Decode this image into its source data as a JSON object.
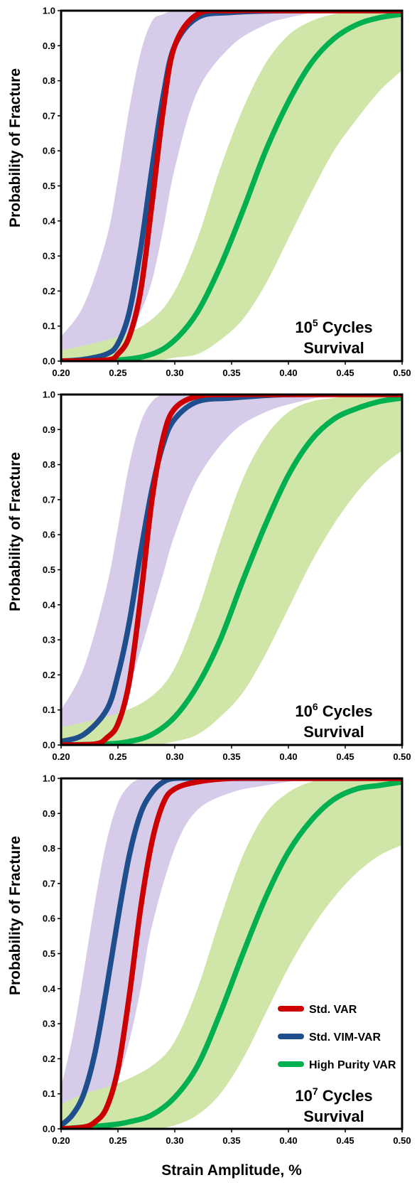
{
  "figure": {
    "ylabel": "Probability of Fracture",
    "xlabel": "Strain Amplitude, %"
  },
  "colors": {
    "std_var": "#cc0000",
    "std_vim_var": "#1f4e8c",
    "high_purity_var": "#00b050",
    "band_purple": "#d6cbe8",
    "band_green": "#d0e5a8"
  },
  "legend": [
    {
      "label": "Std. VAR",
      "color": "#cc0000"
    },
    {
      "label": "Std. VIM-VAR",
      "color": "#1f4e8c"
    },
    {
      "label": "High Purity VAR",
      "color": "#00b050"
    }
  ],
  "chart_data": [
    {
      "type": "line",
      "annotation": {
        "base": "10",
        "exp": "5",
        "line1_rest": " Cycles",
        "line2": "Survival"
      },
      "xlim": [
        0.2,
        0.5
      ],
      "ylim": [
        0.0,
        1.0
      ],
      "xticks": [
        "0.20",
        "0.25",
        "0.30",
        "0.35",
        "0.40",
        "0.45",
        "0.50"
      ],
      "yticks": [
        "0.0",
        "0.1",
        "0.2",
        "0.3",
        "0.4",
        "0.5",
        "0.6",
        "0.7",
        "0.8",
        "0.9",
        "1.0"
      ],
      "series": [
        {
          "name": "Std. VAR",
          "x": [
            0.2,
            0.24,
            0.25,
            0.26,
            0.27,
            0.28,
            0.29,
            0.3,
            0.32,
            0.35,
            0.4,
            0.5
          ],
          "y": [
            0.0,
            0.003,
            0.02,
            0.07,
            0.2,
            0.45,
            0.72,
            0.9,
            0.99,
            1.0,
            1.0,
            1.0
          ]
        },
        {
          "name": "Std. VIM-VAR",
          "x": [
            0.2,
            0.22,
            0.24,
            0.25,
            0.26,
            0.27,
            0.28,
            0.29,
            0.3,
            0.32,
            0.35,
            0.4,
            0.5
          ],
          "y": [
            0.0,
            0.005,
            0.02,
            0.05,
            0.14,
            0.32,
            0.55,
            0.76,
            0.9,
            0.98,
            0.995,
            1.0,
            1.0
          ]
        },
        {
          "name": "High Purity VAR",
          "x": [
            0.2,
            0.25,
            0.28,
            0.3,
            0.32,
            0.34,
            0.36,
            0.38,
            0.4,
            0.42,
            0.44,
            0.46,
            0.48,
            0.5
          ],
          "y": [
            0.0,
            0.003,
            0.02,
            0.06,
            0.14,
            0.27,
            0.43,
            0.6,
            0.74,
            0.85,
            0.92,
            0.96,
            0.98,
            0.99
          ]
        }
      ],
      "bands": [
        {
          "color": "band_purple",
          "x": [
            0.2,
            0.22,
            0.24,
            0.25,
            0.26,
            0.27,
            0.28,
            0.29,
            0.3,
            0.32,
            0.35,
            0.38,
            0.4,
            0.43
          ],
          "upper": [
            0.07,
            0.16,
            0.35,
            0.52,
            0.72,
            0.88,
            0.97,
            0.99,
            1.0,
            1.0,
            1.0,
            1.0,
            1.0,
            1.0
          ],
          "lower": [
            0.0,
            0.0,
            0.02,
            0.04,
            0.08,
            0.14,
            0.23,
            0.38,
            0.55,
            0.77,
            0.9,
            0.96,
            0.98,
            1.0
          ]
        },
        {
          "color": "band_green",
          "x": [
            0.2,
            0.25,
            0.28,
            0.3,
            0.32,
            0.34,
            0.36,
            0.38,
            0.4,
            0.42,
            0.44,
            0.46,
            0.48,
            0.5
          ],
          "upper": [
            0.03,
            0.07,
            0.12,
            0.2,
            0.35,
            0.55,
            0.72,
            0.85,
            0.93,
            0.97,
            0.99,
            1.0,
            1.0,
            1.0
          ],
          "lower": [
            0.0,
            0.0,
            0.0,
            0.01,
            0.02,
            0.06,
            0.12,
            0.22,
            0.35,
            0.48,
            0.6,
            0.69,
            0.77,
            0.83
          ]
        }
      ]
    },
    {
      "type": "line",
      "annotation": {
        "base": "10",
        "exp": "6",
        "line1_rest": " Cycles",
        "line2": "Survival"
      },
      "xlim": [
        0.2,
        0.5
      ],
      "ylim": [
        0.0,
        1.0
      ],
      "xticks": [
        "0.20",
        "0.25",
        "0.30",
        "0.35",
        "0.40",
        "0.45",
        "0.50"
      ],
      "yticks": [
        "0.0",
        "0.1",
        "0.2",
        "0.3",
        "0.4",
        "0.5",
        "0.6",
        "0.7",
        "0.8",
        "0.9",
        "1.0"
      ],
      "series": [
        {
          "name": "Std. VAR",
          "x": [
            0.2,
            0.23,
            0.24,
            0.25,
            0.26,
            0.27,
            0.28,
            0.29,
            0.3,
            0.32,
            0.35,
            0.4,
            0.5
          ],
          "y": [
            0.0,
            0.003,
            0.02,
            0.06,
            0.18,
            0.42,
            0.7,
            0.88,
            0.96,
            0.995,
            1.0,
            1.0,
            1.0
          ]
        },
        {
          "name": "Std. VIM-VAR",
          "x": [
            0.2,
            0.22,
            0.24,
            0.25,
            0.26,
            0.27,
            0.28,
            0.29,
            0.3,
            0.32,
            0.35,
            0.4,
            0.5
          ],
          "y": [
            0.01,
            0.03,
            0.1,
            0.2,
            0.35,
            0.55,
            0.73,
            0.86,
            0.93,
            0.98,
            0.99,
            1.0,
            1.0
          ]
        },
        {
          "name": "High Purity VAR",
          "x": [
            0.2,
            0.24,
            0.26,
            0.28,
            0.3,
            0.32,
            0.34,
            0.36,
            0.38,
            0.4,
            0.42,
            0.44,
            0.46,
            0.48,
            0.5
          ],
          "y": [
            0.0,
            0.003,
            0.01,
            0.03,
            0.08,
            0.17,
            0.3,
            0.47,
            0.63,
            0.77,
            0.87,
            0.93,
            0.96,
            0.98,
            0.99
          ]
        }
      ],
      "bands": [
        {
          "color": "band_purple",
          "x": [
            0.2,
            0.22,
            0.24,
            0.25,
            0.26,
            0.27,
            0.28,
            0.29,
            0.3,
            0.32,
            0.35,
            0.38,
            0.41,
            0.44
          ],
          "upper": [
            0.1,
            0.22,
            0.45,
            0.62,
            0.8,
            0.92,
            0.98,
            1.0,
            1.0,
            1.0,
            1.0,
            1.0,
            1.0,
            1.0
          ],
          "lower": [
            0.0,
            0.01,
            0.04,
            0.09,
            0.17,
            0.27,
            0.38,
            0.49,
            0.6,
            0.76,
            0.89,
            0.95,
            0.98,
            1.0
          ]
        },
        {
          "color": "band_green",
          "x": [
            0.2,
            0.25,
            0.28,
            0.3,
            0.32,
            0.34,
            0.36,
            0.38,
            0.4,
            0.42,
            0.44,
            0.46,
            0.48,
            0.5
          ],
          "upper": [
            0.05,
            0.09,
            0.14,
            0.22,
            0.38,
            0.58,
            0.76,
            0.88,
            0.95,
            0.98,
            0.99,
            1.0,
            1.0,
            1.0
          ],
          "lower": [
            0.0,
            0.0,
            0.0,
            0.01,
            0.03,
            0.08,
            0.15,
            0.26,
            0.39,
            0.52,
            0.63,
            0.72,
            0.79,
            0.84
          ]
        }
      ]
    },
    {
      "type": "line",
      "annotation": {
        "base": "10",
        "exp": "7",
        "line1_rest": " Cycles",
        "line2": "Survival"
      },
      "xlim": [
        0.2,
        0.5
      ],
      "ylim": [
        0.0,
        1.0
      ],
      "xticks": [
        "0.20",
        "0.25",
        "0.30",
        "0.35",
        "0.40",
        "0.45",
        "0.50"
      ],
      "yticks": [
        "0.0",
        "0.1",
        "0.2",
        "0.3",
        "0.4",
        "0.5",
        "0.6",
        "0.7",
        "0.8",
        "0.9",
        "1.0"
      ],
      "series": [
        {
          "name": "Std. VAR",
          "x": [
            0.2,
            0.22,
            0.23,
            0.24,
            0.25,
            0.26,
            0.27,
            0.28,
            0.29,
            0.3,
            0.32,
            0.35,
            0.4,
            0.5
          ],
          "y": [
            0.0,
            0.005,
            0.02,
            0.06,
            0.17,
            0.38,
            0.63,
            0.82,
            0.93,
            0.97,
            0.99,
            1.0,
            1.0,
            1.0
          ]
        },
        {
          "name": "Std. VIM-VAR",
          "x": [
            0.2,
            0.21,
            0.22,
            0.23,
            0.24,
            0.25,
            0.26,
            0.27,
            0.28,
            0.29,
            0.3,
            0.32,
            0.35,
            0.5
          ],
          "y": [
            0.01,
            0.04,
            0.1,
            0.22,
            0.4,
            0.6,
            0.78,
            0.9,
            0.96,
            0.99,
            1.0,
            1.0,
            1.0,
            1.0
          ]
        },
        {
          "name": "High Purity VAR",
          "x": [
            0.2,
            0.24,
            0.26,
            0.28,
            0.3,
            0.32,
            0.34,
            0.36,
            0.38,
            0.4,
            0.42,
            0.44,
            0.46,
            0.48,
            0.5
          ],
          "y": [
            0.0,
            0.01,
            0.02,
            0.04,
            0.09,
            0.18,
            0.33,
            0.5,
            0.66,
            0.79,
            0.88,
            0.94,
            0.97,
            0.98,
            0.99
          ]
        }
      ],
      "bands": [
        {
          "color": "band_purple",
          "x": [
            0.2,
            0.21,
            0.22,
            0.23,
            0.24,
            0.25,
            0.26,
            0.27,
            0.28,
            0.3,
            0.32,
            0.35,
            0.38,
            0.42
          ],
          "upper": [
            0.12,
            0.26,
            0.45,
            0.65,
            0.82,
            0.93,
            0.98,
            1.0,
            1.0,
            1.0,
            1.0,
            1.0,
            1.0,
            1.0
          ],
          "lower": [
            0.0,
            0.0,
            0.01,
            0.02,
            0.06,
            0.14,
            0.25,
            0.4,
            0.58,
            0.8,
            0.91,
            0.96,
            0.98,
            1.0
          ]
        },
        {
          "color": "band_green",
          "x": [
            0.2,
            0.22,
            0.25,
            0.28,
            0.3,
            0.32,
            0.34,
            0.36,
            0.38,
            0.4,
            0.42,
            0.44,
            0.46,
            0.48,
            0.5
          ],
          "upper": [
            0.07,
            0.1,
            0.13,
            0.18,
            0.25,
            0.4,
            0.6,
            0.78,
            0.9,
            0.96,
            0.99,
            1.0,
            1.0,
            1.0,
            1.0
          ],
          "lower": [
            0.0,
            0.0,
            0.0,
            0.0,
            0.01,
            0.04,
            0.1,
            0.2,
            0.33,
            0.46,
            0.57,
            0.66,
            0.73,
            0.78,
            0.81
          ]
        }
      ]
    }
  ]
}
